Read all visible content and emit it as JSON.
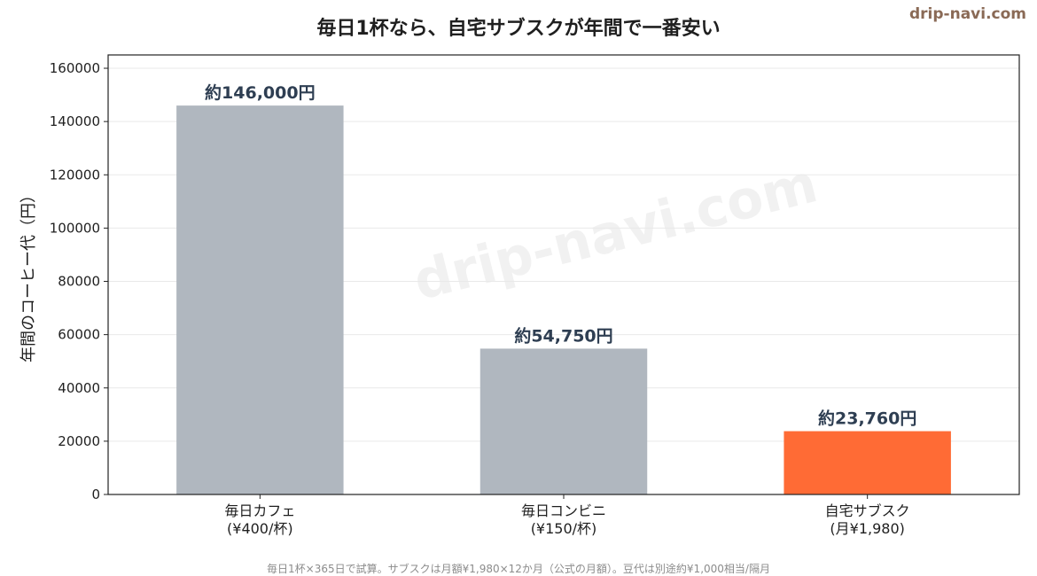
{
  "brand": "drip-navi.com",
  "watermark": "drip-navi.com",
  "footnote": "毎日1杯×365日で試算。サブスクは月額¥1,980×12か月（公式の月額）。豆代は別途約¥1,000相当/隔月",
  "colors": {
    "bar_default": "#b0b7bf",
    "bar_highlight": "#ff6b35",
    "label_text": "#2e3e52",
    "grid": "#e9e9e9",
    "axis": "#222222"
  },
  "chart_data": {
    "type": "bar",
    "title": "毎日1杯なら、自宅サブスクが年間で一番安い",
    "xlabel": "",
    "ylabel": "年間のコーヒー代（円）",
    "ylim": [
      0,
      165000
    ],
    "yticks": [
      0,
      20000,
      40000,
      60000,
      80000,
      100000,
      120000,
      140000,
      160000
    ],
    "grid": true,
    "categories": [
      [
        "毎日カフェ",
        "(¥400/杯)"
      ],
      [
        "毎日コンビニ",
        "(¥150/杯)"
      ],
      [
        "自宅サブスク",
        "(月¥1,980)"
      ]
    ],
    "values": [
      146000,
      54750,
      23760
    ],
    "data_labels": [
      "約146,000円",
      "約54,750円",
      "約23,760円"
    ],
    "highlight_index": 2
  }
}
